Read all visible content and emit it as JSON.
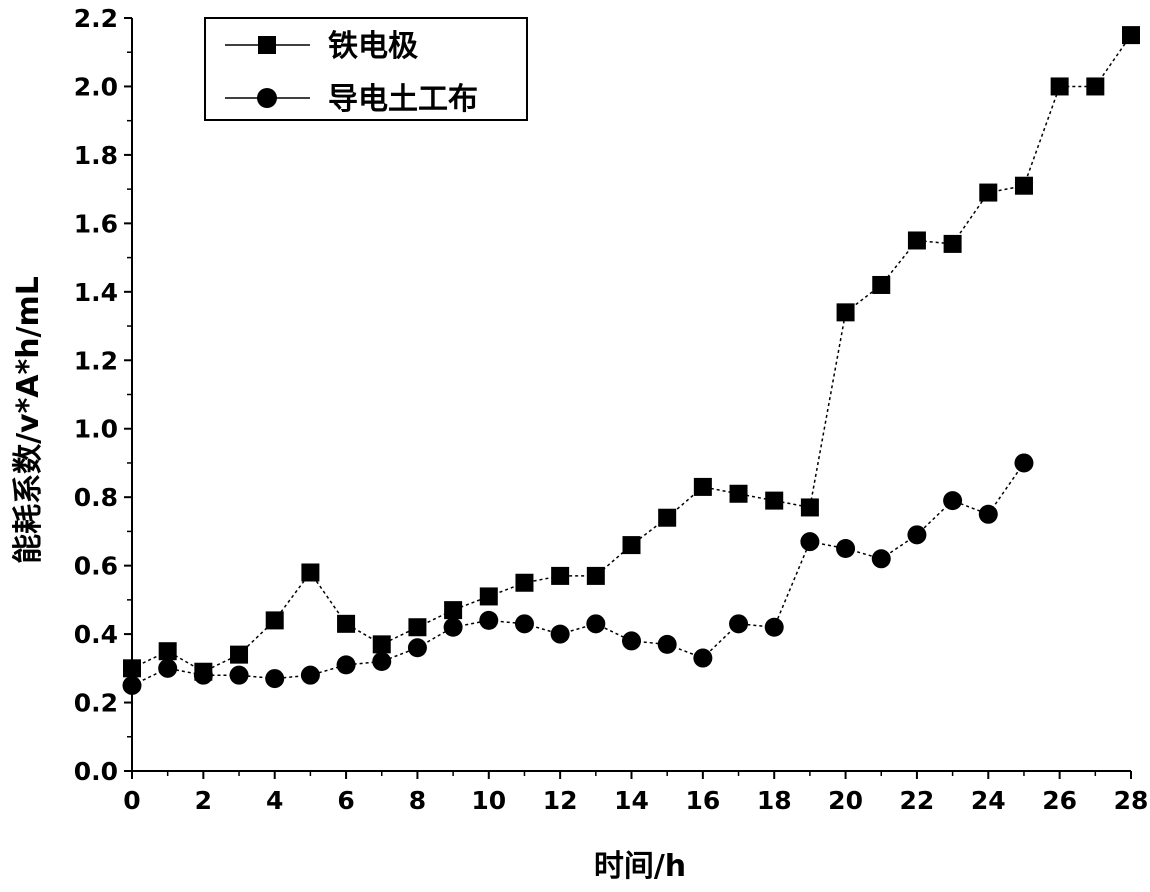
{
  "chart_data": {
    "type": "line",
    "xlabel": "时间/h",
    "ylabel": "能耗系数/v*A*h/mL",
    "xlim": [
      0,
      28
    ],
    "ylim": [
      0.0,
      2.2
    ],
    "xticks": [
      0,
      2,
      4,
      6,
      8,
      10,
      12,
      14,
      16,
      18,
      20,
      22,
      24,
      26,
      28
    ],
    "xtick_labels": [
      "0",
      "2",
      "4",
      "6",
      "8",
      "10",
      "12",
      "14",
      "16",
      "18",
      "20",
      "22",
      "24",
      "26",
      "28"
    ],
    "yticks": [
      0.0,
      0.2,
      0.4,
      0.6,
      0.8,
      1.0,
      1.2,
      1.4,
      1.6,
      1.8,
      2.0,
      2.2
    ],
    "ytick_labels": [
      "0.0",
      "0.2",
      "0.4",
      "0.6",
      "0.8",
      "1.0",
      "1.2",
      "1.4",
      "1.6",
      "1.8",
      "2.0",
      "2.2"
    ],
    "grid": false,
    "legend_position": "top-left",
    "series": [
      {
        "name": "铁电极",
        "marker": "square",
        "line_style": "dotted",
        "color": "#000000",
        "x": [
          0,
          1,
          2,
          3,
          4,
          5,
          6,
          7,
          8,
          9,
          10,
          11,
          12,
          13,
          14,
          15,
          16,
          17,
          18,
          19,
          20,
          21,
          22,
          23,
          24,
          25,
          26,
          27,
          28
        ],
        "y": [
          0.3,
          0.35,
          0.29,
          0.34,
          0.44,
          0.58,
          0.43,
          0.37,
          0.42,
          0.47,
          0.51,
          0.55,
          0.57,
          0.57,
          0.66,
          0.74,
          0.83,
          0.81,
          0.79,
          0.77,
          1.34,
          1.42,
          1.55,
          1.54,
          1.69,
          1.71,
          2.0,
          2.0,
          2.15
        ]
      },
      {
        "name": "导电土工布",
        "marker": "circle",
        "line_style": "dotted",
        "color": "#000000",
        "x": [
          0,
          1,
          2,
          3,
          4,
          5,
          6,
          7,
          8,
          9,
          10,
          11,
          12,
          13,
          14,
          15,
          16,
          17,
          18,
          19,
          20,
          21,
          22,
          23,
          24,
          25
        ],
        "y": [
          0.25,
          0.3,
          0.28,
          0.28,
          0.27,
          0.28,
          0.31,
          0.32,
          0.36,
          0.42,
          0.44,
          0.43,
          0.4,
          0.43,
          0.38,
          0.37,
          0.33,
          0.43,
          0.42,
          0.67,
          0.65,
          0.62,
          0.69,
          0.79,
          0.75,
          0.9
        ]
      }
    ]
  }
}
